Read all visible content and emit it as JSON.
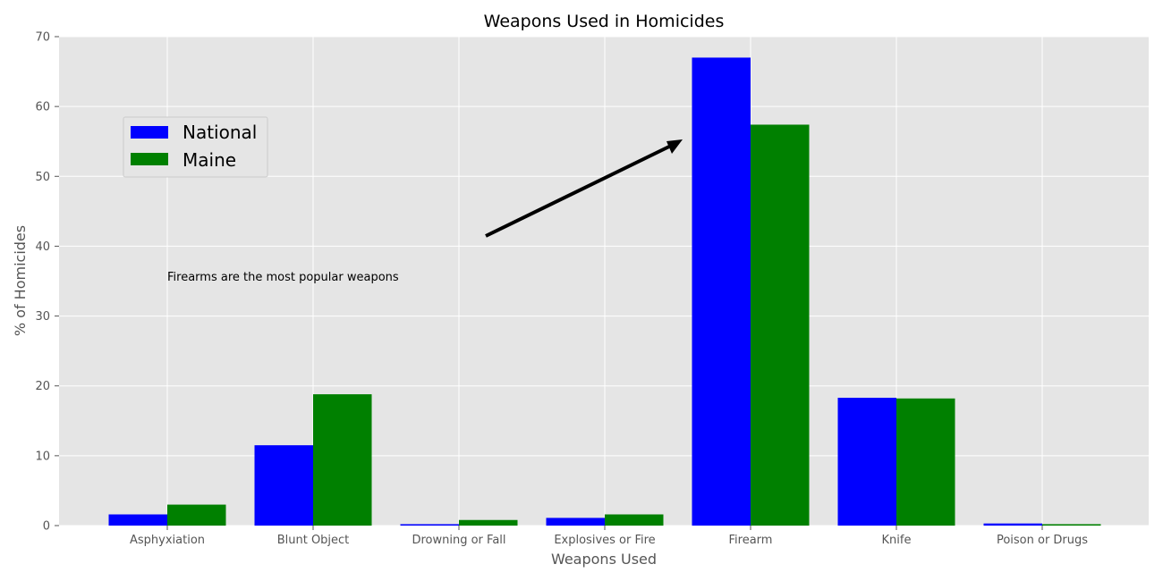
{
  "chart_data": {
    "type": "bar",
    "title": "Weapons Used in Homicides",
    "xlabel": "Weapons Used",
    "ylabel": "% of Homicides",
    "categories": [
      "Asphyxiation",
      "Blunt Object",
      "Drowning or Fall",
      "Explosives or Fire",
      "Firearm",
      "Knife",
      "Poison or Drugs"
    ],
    "series": [
      {
        "name": "National",
        "color": "#0000ff",
        "values": [
          1.6,
          11.5,
          0.2,
          1.1,
          67.0,
          18.3,
          0.3
        ]
      },
      {
        "name": "Maine",
        "color": "#008000",
        "values": [
          3.0,
          18.8,
          0.8,
          1.6,
          57.4,
          18.2,
          0.2
        ]
      }
    ],
    "ylim": [
      0,
      70
    ],
    "yticks": [
      0,
      10,
      20,
      30,
      40,
      50,
      60,
      70
    ],
    "grid": true,
    "legend": "upper-left",
    "annotation": {
      "text": "Firearms are the most popular weapons",
      "points_to": {
        "category": "Firearm",
        "y": 55
      }
    }
  }
}
